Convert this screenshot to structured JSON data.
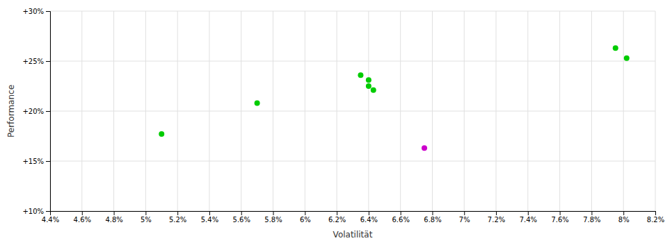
{
  "chart_data": {
    "type": "scatter",
    "xlabel": "Volatilität",
    "ylabel": "Performance",
    "xlim": [
      0.044,
      0.082
    ],
    "ylim": [
      0.1,
      0.3
    ],
    "xticks": [
      {
        "value": 0.044,
        "label": "4.4%"
      },
      {
        "value": 0.046,
        "label": "4.6%"
      },
      {
        "value": 0.048,
        "label": "4.8%"
      },
      {
        "value": 0.05,
        "label": "5%"
      },
      {
        "value": 0.052,
        "label": "5.2%"
      },
      {
        "value": 0.054,
        "label": "5.4%"
      },
      {
        "value": 0.056,
        "label": "5.6%"
      },
      {
        "value": 0.058,
        "label": "5.8%"
      },
      {
        "value": 0.06,
        "label": "6%"
      },
      {
        "value": 0.062,
        "label": "6.2%"
      },
      {
        "value": 0.064,
        "label": "6.4%"
      },
      {
        "value": 0.066,
        "label": "6.6%"
      },
      {
        "value": 0.068,
        "label": "6.8%"
      },
      {
        "value": 0.07,
        "label": "7%"
      },
      {
        "value": 0.072,
        "label": "7.2%"
      },
      {
        "value": 0.074,
        "label": "7.4%"
      },
      {
        "value": 0.076,
        "label": "7.6%"
      },
      {
        "value": 0.078,
        "label": "7.8%"
      },
      {
        "value": 0.08,
        "label": "8%"
      },
      {
        "value": 0.082,
        "label": "8.2%"
      }
    ],
    "yticks": [
      {
        "value": 0.1,
        "label": "+10%"
      },
      {
        "value": 0.15,
        "label": "+15%"
      },
      {
        "value": 0.2,
        "label": "+20%"
      },
      {
        "value": 0.25,
        "label": "+25%"
      },
      {
        "value": 0.3,
        "label": "+30%"
      }
    ],
    "grid": true,
    "series": [
      {
        "color": "#00cc00",
        "x": [
          0.051,
          0.057,
          0.0635,
          0.064,
          0.064,
          0.0643,
          0.0795,
          0.0802
        ],
        "values": [
          0.177,
          0.208,
          0.236,
          0.231,
          0.225,
          0.221,
          0.263,
          0.253
        ]
      },
      {
        "color": "#cc00cc",
        "x": [
          0.0675
        ],
        "values": [
          0.163
        ]
      }
    ]
  }
}
